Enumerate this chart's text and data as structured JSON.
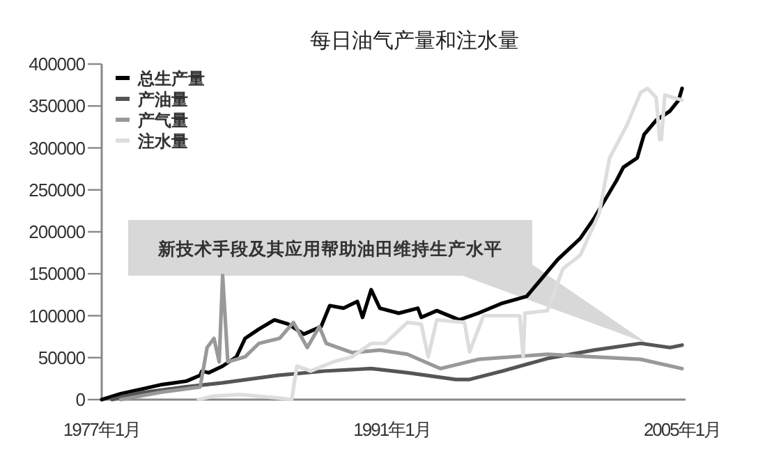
{
  "chart_data": {
    "type": "line",
    "title": "每日油气产量和注水量",
    "legend": "top left",
    "grid": false,
    "ylim": [
      0,
      400000
    ],
    "yticks": [
      0,
      50000,
      100000,
      150000,
      200000,
      250000,
      300000,
      350000,
      400000
    ],
    "xlim": [
      "1977-01",
      "2005-03"
    ],
    "xticks": [
      {
        "value": "1977-01",
        "label": "1977年1月"
      },
      {
        "value": "1991-01",
        "label": "1991年1月"
      },
      {
        "value": "2005-01",
        "label": "2005年1月"
      }
    ],
    "annotations": [
      {
        "text": "新技术手段及其应用帮助油田维持生产水平",
        "x": "2003-05",
        "y": 67000
      }
    ],
    "series": [
      {
        "name": "总生产量",
        "color": "#000000",
        "x": [
          "1977-01",
          "1977-12",
          "1978-11",
          "1979-12",
          "1981-02",
          "1981-10",
          "1981-11",
          "1982-03",
          "1982-11",
          "1983-07",
          "1983-12",
          "1984-08",
          "1985-05",
          "1986-01",
          "1986-10",
          "1987-08",
          "1988-01",
          "1988-09",
          "1989-05",
          "1989-08",
          "1990-01",
          "1990-06",
          "1991-05",
          "1992-04",
          "1992-06",
          "1993-03",
          "1994-04",
          "1995-03",
          "1996-05",
          "1997-07",
          "1998-02",
          "1999-01",
          "2000-02",
          "2000-10",
          "2001-11",
          "2002-03",
          "2002-11",
          "2003-03",
          "2003-10",
          "2004-06",
          "2004-11",
          "2005-01"
        ],
        "values": [
          0,
          7000,
          12000,
          18000,
          22000,
          29000,
          34000,
          32000,
          40000,
          51000,
          73000,
          84000,
          95000,
          90000,
          78000,
          87000,
          112000,
          109000,
          117000,
          98000,
          131000,
          109000,
          103000,
          109000,
          98000,
          106000,
          95000,
          103000,
          115000,
          123000,
          140000,
          167000,
          192000,
          216000,
          261000,
          277000,
          288000,
          316000,
          333000,
          344000,
          357000,
          371000
        ]
      },
      {
        "name": "产油量",
        "color": "#555555",
        "x": [
          "1977-07",
          "1978-11",
          "1981-01",
          "1982-11",
          "1985-07",
          "1987-10",
          "1990-01",
          "1991-10",
          "1994-02",
          "1994-10",
          "1996-05",
          "1998-07",
          "2000-10",
          "2003-01",
          "2004-06",
          "2005-01"
        ],
        "values": [
          0,
          8000,
          15000,
          20000,
          29000,
          34000,
          37000,
          32000,
          24000,
          24000,
          34000,
          49000,
          59000,
          67000,
          62000,
          65000
        ]
      },
      {
        "name": "产气量",
        "color": "#999999",
        "x": [
          "1977-12",
          "1979-12",
          "1981-10",
          "1982-02",
          "1982-06",
          "1982-09",
          "1982-11",
          "1983-02",
          "1983-12",
          "1984-08",
          "1985-08",
          "1986-04",
          "1986-12",
          "1987-07",
          "1987-11",
          "1989-02",
          "1990-06",
          "1991-10",
          "1993-05",
          "1995-03",
          "1998-07",
          "2000-10",
          "2003-01",
          "2005-01"
        ],
        "values": [
          0,
          9000,
          15000,
          62000,
          73000,
          45000,
          148000,
          45000,
          51000,
          67000,
          73000,
          92000,
          62000,
          87000,
          67000,
          56000,
          59000,
          54000,
          37000,
          48000,
          54000,
          51000,
          48000,
          37000
        ]
      },
      {
        "name": "注水量",
        "color": "#dddddd",
        "x": [
          "1981-09",
          "1982-05",
          "1983-09",
          "1985-07",
          "1986-03",
          "1986-06",
          "1987-02",
          "1988-03",
          "1989-02",
          "1990-01",
          "1990-09",
          "1991-10",
          "1992-06",
          "1992-10",
          "1993-03",
          "1994-07",
          "1994-10",
          "1995-06",
          "1997-03",
          "1997-05",
          "1997-06",
          "1998-07",
          "1999-04",
          "2000-02",
          "2001-01",
          "2001-07",
          "2002-05",
          "2003-01",
          "2003-05",
          "2003-10",
          "2003-12",
          "2004-01",
          "2004-03",
          "2004-08",
          "2005-01"
        ],
        "values": [
          0,
          4000,
          6000,
          2000,
          0,
          40000,
          34000,
          45000,
          51000,
          67000,
          67000,
          92000,
          90000,
          51000,
          95000,
          92000,
          57000,
          100000,
          100000,
          51000,
          103000,
          106000,
          156000,
          172000,
          222000,
          288000,
          327000,
          366000,
          371000,
          360000,
          310000,
          310000,
          363000,
          360000,
          357000
        ]
      }
    ]
  }
}
